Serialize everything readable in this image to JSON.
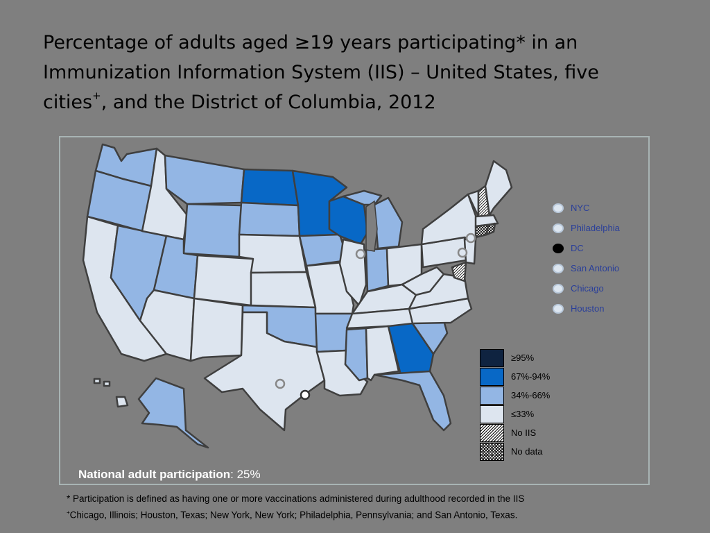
{
  "title": {
    "line1": "Percentage of adults aged ≥19 years participating* in an Immunization Information System (IIS) – United States, five cities",
    "sup": "+",
    "line2": ", and the District of Columbia, 2012"
  },
  "colors": {
    "ge95": "#0f2340",
    "c67_94": "#0868c6",
    "c34_66": "#93b6e4",
    "le33": "#dde5ef",
    "no_iis": "hatch",
    "no_data": "crosshatch",
    "border": "#3f3f3f"
  },
  "map": {
    "states": [
      {
        "name": "Washington",
        "category": "34-66"
      },
      {
        "name": "Oregon",
        "category": "34-66"
      },
      {
        "name": "California",
        "category": "le33"
      },
      {
        "name": "Nevada",
        "category": "34-66"
      },
      {
        "name": "Idaho",
        "category": "le33"
      },
      {
        "name": "Montana",
        "category": "34-66"
      },
      {
        "name": "Wyoming",
        "category": "34-66"
      },
      {
        "name": "Utah",
        "category": "34-66"
      },
      {
        "name": "Arizona",
        "category": "le33"
      },
      {
        "name": "Colorado",
        "category": "le33"
      },
      {
        "name": "New Mexico",
        "category": "le33"
      },
      {
        "name": "North Dakota",
        "category": "67-94"
      },
      {
        "name": "South Dakota",
        "category": "34-66"
      },
      {
        "name": "Nebraska",
        "category": "le33"
      },
      {
        "name": "Kansas",
        "category": "le33"
      },
      {
        "name": "Oklahoma",
        "category": "34-66"
      },
      {
        "name": "Texas",
        "category": "le33"
      },
      {
        "name": "Minnesota",
        "category": "67-94"
      },
      {
        "name": "Iowa",
        "category": "34-66"
      },
      {
        "name": "Missouri",
        "category": "le33"
      },
      {
        "name": "Arkansas",
        "category": "34-66"
      },
      {
        "name": "Louisiana",
        "category": "le33"
      },
      {
        "name": "Wisconsin",
        "category": "67-94"
      },
      {
        "name": "Illinois",
        "category": "le33"
      },
      {
        "name": "Michigan",
        "category": "34-66"
      },
      {
        "name": "Indiana",
        "category": "34-66"
      },
      {
        "name": "Ohio",
        "category": "le33"
      },
      {
        "name": "Kentucky",
        "category": "le33"
      },
      {
        "name": "Tennessee",
        "category": "le33"
      },
      {
        "name": "Mississippi",
        "category": "34-66"
      },
      {
        "name": "Alabama",
        "category": "le33"
      },
      {
        "name": "Georgia",
        "category": "67-94"
      },
      {
        "name": "Florida",
        "category": "34-66"
      },
      {
        "name": "South Carolina",
        "category": "34-66"
      },
      {
        "name": "North Carolina",
        "category": "le33"
      },
      {
        "name": "Virginia",
        "category": "le33"
      },
      {
        "name": "West Virginia",
        "category": "le33"
      },
      {
        "name": "Pennsylvania",
        "category": "le33"
      },
      {
        "name": "New York",
        "category": "le33"
      },
      {
        "name": "New Jersey",
        "category": "le33"
      },
      {
        "name": "Maryland",
        "category": "no_iis"
      },
      {
        "name": "Vermont",
        "category": "le33"
      },
      {
        "name": "New Hampshire",
        "category": "no_iis"
      },
      {
        "name": "Maine",
        "category": "le33"
      },
      {
        "name": "Massachusetts",
        "category": "le33"
      },
      {
        "name": "Rhode Island",
        "category": "no_data"
      },
      {
        "name": "Connecticut",
        "category": "no_data"
      },
      {
        "name": "Alaska",
        "category": "34-66"
      },
      {
        "name": "Hawaii",
        "category": "le33"
      }
    ]
  },
  "city_legend": [
    {
      "label": "NYC"
    },
    {
      "label": "Philadelphia"
    },
    {
      "label": "DC"
    },
    {
      "label": "San Antonio"
    },
    {
      "label": "Chicago"
    },
    {
      "label": "Houston"
    }
  ],
  "legend": [
    {
      "label": "≥95%"
    },
    {
      "label": "67%-94%"
    },
    {
      "label": "34%-66%"
    },
    {
      "label": "≤33%"
    },
    {
      "label": "No IIS"
    },
    {
      "label": "No data"
    }
  ],
  "national": {
    "label": "National adult participation",
    "value": ": 25%"
  },
  "footnotes": {
    "star": "* Participation is defined as having one or more vaccinations administered during adulthood recorded in the IIS",
    "plus_mark": "+",
    "plus": "Chicago, Illinois; Houston, Texas; New York, New York; Philadelphia, Pennsylvania; and San Antonio, Texas."
  }
}
